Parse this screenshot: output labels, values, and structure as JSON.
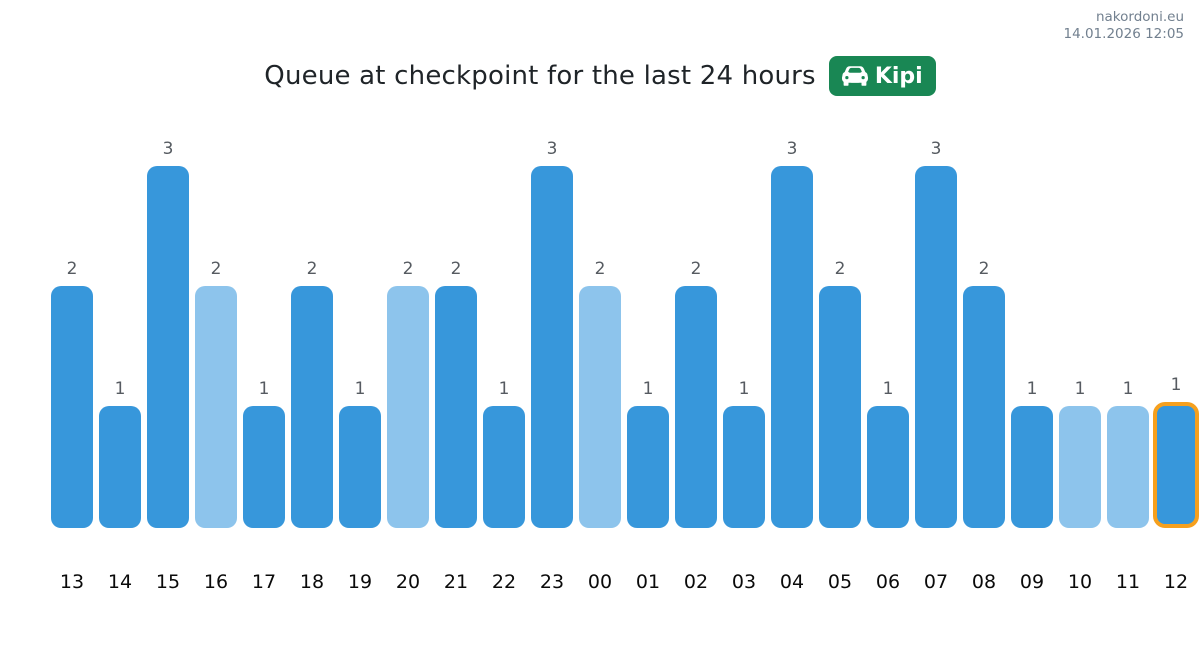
{
  "header": {
    "site": "nakordoni.eu",
    "timestamp": "14.01.2026 12:05"
  },
  "title": {
    "text": "Queue at checkpoint for the last 24 hours",
    "badge_label": "Kipi",
    "badge_icon": "car-front-icon"
  },
  "colors": {
    "badge_green": "#198754",
    "bar_primary": "#3797db",
    "bar_light": "#8dc4ec",
    "highlight_border": "#f6a01e",
    "value_label": "#565b61",
    "axis_label": "#0a0a0a",
    "header_text": "#72808f",
    "title_text": "#1f2428"
  },
  "chart_data": {
    "type": "bar",
    "title": "Queue at checkpoint for the last 24 hours",
    "xlabel": "",
    "ylabel": "",
    "categories": [
      "13",
      "14",
      "15",
      "16",
      "17",
      "18",
      "19",
      "20",
      "21",
      "22",
      "23",
      "00",
      "01",
      "02",
      "03",
      "04",
      "05",
      "06",
      "07",
      "08",
      "09",
      "10",
      "11",
      "12"
    ],
    "values": [
      2,
      1,
      3,
      2,
      1,
      2,
      1,
      2,
      2,
      1,
      3,
      2,
      1,
      2,
      1,
      3,
      2,
      1,
      3,
      2,
      1,
      1,
      1,
      1
    ],
    "ylim": [
      0,
      3
    ],
    "grid": false,
    "legend": false,
    "value_labels_shown": true,
    "light_bar_categories": [
      "16",
      "20",
      "00",
      "10",
      "11"
    ],
    "highlighted_category": "12"
  }
}
